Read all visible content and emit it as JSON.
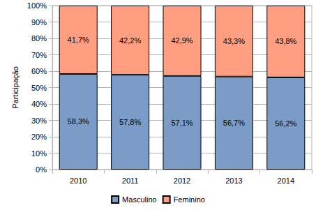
{
  "chart_data": {
    "type": "bar",
    "stacked": true,
    "data_labels": true,
    "grid": true,
    "legend": "bottom",
    "ylabel": "Participação",
    "categories": [
      "2010",
      "2011",
      "2012",
      "2013",
      "2014"
    ],
    "series": [
      {
        "name": "Masculino",
        "color": "#7b9cc6",
        "values": [
          58.3,
          57.8,
          57.1,
          56.7,
          56.2
        ],
        "value_labels": [
          "58,3%",
          "57,8%",
          "57,1%",
          "56,7%",
          "56,2%"
        ]
      },
      {
        "name": "Feminino",
        "color": "#ff9e80",
        "values": [
          41.7,
          42.2,
          42.9,
          43.3,
          43.8
        ],
        "value_labels": [
          "41,7%",
          "42,2%",
          "42,9%",
          "43,3%",
          "43,8%"
        ]
      }
    ],
    "ylim": [
      0,
      100
    ],
    "yticks": [
      {
        "value": 0,
        "label": "0%"
      },
      {
        "value": 10,
        "label": "10%"
      },
      {
        "value": 20,
        "label": "20%"
      },
      {
        "value": 30,
        "label": "30%"
      },
      {
        "value": 40,
        "label": "40%"
      },
      {
        "value": 50,
        "label": "50%"
      },
      {
        "value": 60,
        "label": "60%"
      },
      {
        "value": 70,
        "label": "70%"
      },
      {
        "value": 80,
        "label": "80%"
      },
      {
        "value": 90,
        "label": "90%"
      },
      {
        "value": 100,
        "label": "100%"
      }
    ]
  }
}
